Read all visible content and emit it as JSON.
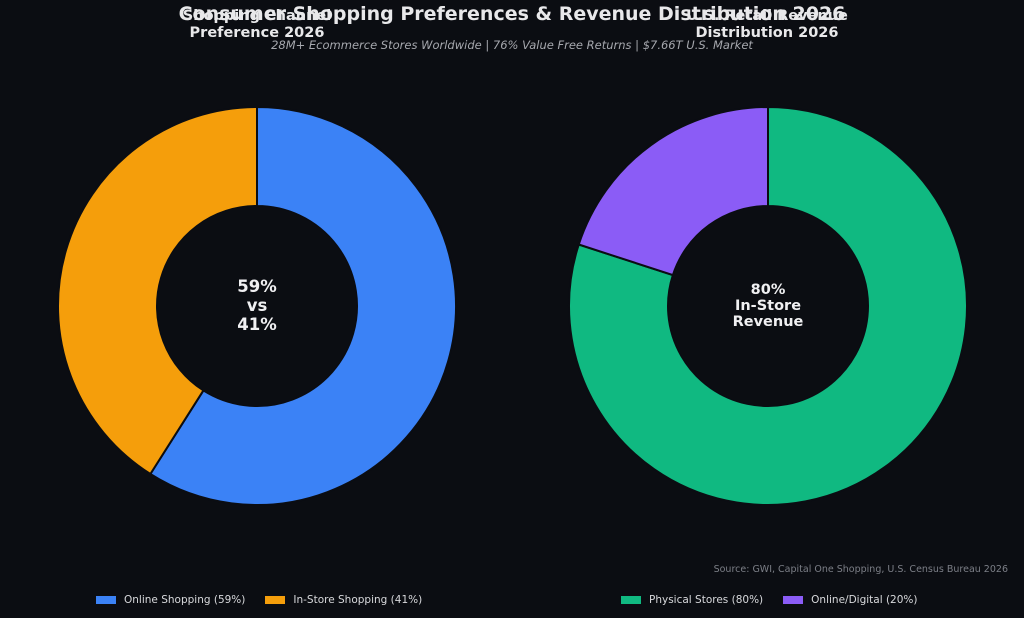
{
  "header": {
    "title": "Consumer Shopping Preferences & Revenue Distribution 2026",
    "subtitle": "28M+ Ecommerce Stores Worldwide | 76% Value Free Returns | $7.66T U.S. Market"
  },
  "source": "Source: GWI, Capital One Shopping, U.S. Census Bureau 2026",
  "chart_data": [
    {
      "type": "pie",
      "donut": true,
      "title_lines": [
        "Shopping Channel",
        "Preference 2026"
      ],
      "center_text_lines": [
        "59%",
        "vs",
        "41%"
      ],
      "categories": [
        "Online Shopping",
        "In-Store Shopping"
      ],
      "values": [
        59,
        41
      ],
      "colors": [
        "#3b82f6",
        "#f59e0b"
      ],
      "legend": [
        "Online Shopping (59%)",
        "In-Store Shopping (41%)"
      ],
      "legend_placement": "bottom-left"
    },
    {
      "type": "pie",
      "donut": true,
      "title_lines": [
        "U.S. Retail Revenue",
        "Distribution 2026"
      ],
      "center_text_lines": [
        "80%",
        "In-Store",
        "Revenue"
      ],
      "categories": [
        "Physical Stores",
        "Online/Digital"
      ],
      "values": [
        80,
        20
      ],
      "colors": [
        "#10b981",
        "#8b5cf6"
      ],
      "legend": [
        "Physical Stores (80%)",
        "Online/Digital (20%)"
      ],
      "legend_placement": "bottom-right"
    }
  ]
}
